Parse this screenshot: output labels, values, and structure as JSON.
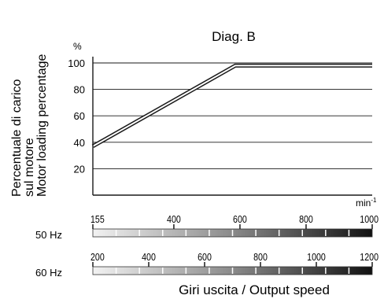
{
  "chart_data": {
    "type": "line",
    "title": "Diag. B",
    "ylabel_lines": [
      "Percentuale di carico",
      "sul motore",
      "Motor loading percentage"
    ],
    "yunit": "%",
    "xunit": "min",
    "xunit_sup": "-1",
    "ylim": [
      0,
      100
    ],
    "yticks": [
      20,
      40,
      60,
      80,
      100
    ],
    "grid": true,
    "series": [
      {
        "x": [
          0,
          510,
          1000
        ],
        "y": [
          37,
          98,
          98
        ]
      }
    ],
    "xlabel": "Giri uscita / Output speed",
    "scales": [
      {
        "label": "50 Hz",
        "ticks": [
          "155",
          "400",
          "600",
          "800",
          "1000"
        ],
        "values": [
          155,
          400,
          600,
          800,
          1000
        ]
      },
      {
        "label": "60 Hz",
        "ticks": [
          "200",
          "400",
          "600",
          "800",
          "1000",
          "1200"
        ],
        "values": [
          200,
          400,
          600,
          800,
          1000,
          1200
        ]
      }
    ]
  }
}
